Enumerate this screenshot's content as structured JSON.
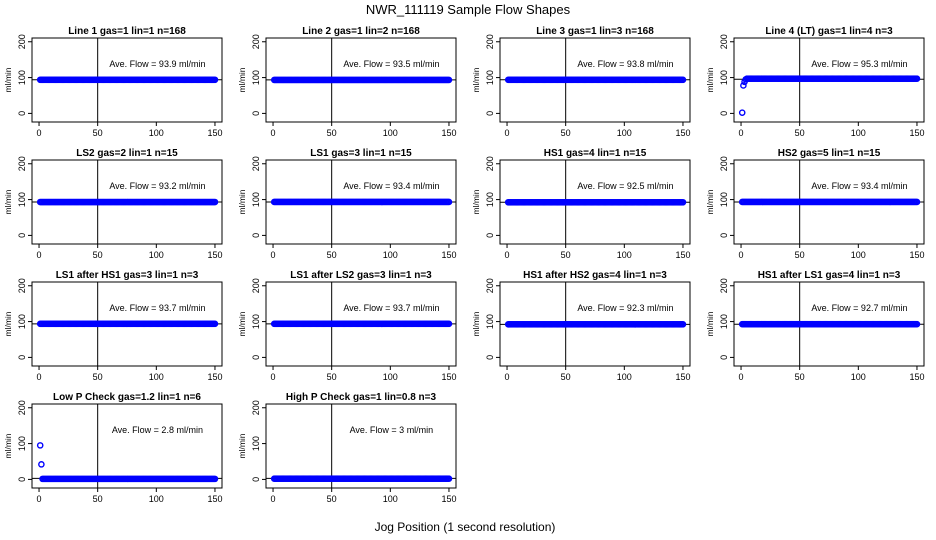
{
  "page": {
    "title": "NWR_111119  Sample Flow Shapes",
    "xlabel": "Jog Position (1 second resolution)"
  },
  "style": {
    "point_color": "#0000ff",
    "axis_color": "#000000"
  },
  "chart_data": [
    {
      "type": "scatter",
      "title": "Line 1 gas=1 lin=1 n=168",
      "ylabel": "ml/min",
      "annotation": "Ave. Flow = 93.9  ml/min",
      "xlim": [
        0,
        150
      ],
      "ylim": [
        0,
        200
      ],
      "xticks": [
        0,
        50,
        100,
        150
      ],
      "yticks": [
        0,
        100,
        200
      ],
      "vline": 50,
      "hline": 93.9,
      "x_range": [
        1,
        150
      ],
      "base_flow": 93.9,
      "outliers": []
    },
    {
      "type": "scatter",
      "title": "Line 2 gas=1 lin=2 n=168",
      "ylabel": "ml/min",
      "annotation": "Ave. Flow = 93.5  ml/min",
      "xlim": [
        0,
        150
      ],
      "ylim": [
        0,
        200
      ],
      "xticks": [
        0,
        50,
        100,
        150
      ],
      "yticks": [
        0,
        100,
        200
      ],
      "vline": 50,
      "hline": 93.5,
      "x_range": [
        1,
        150
      ],
      "base_flow": 93.5,
      "outliers": []
    },
    {
      "type": "scatter",
      "title": "Line 3 gas=1 lin=3 n=168",
      "ylabel": "ml/min",
      "annotation": "Ave. Flow = 93.8  ml/min",
      "xlim": [
        0,
        150
      ],
      "ylim": [
        0,
        200
      ],
      "xticks": [
        0,
        50,
        100,
        150
      ],
      "yticks": [
        0,
        100,
        200
      ],
      "vline": 50,
      "hline": 93.8,
      "x_range": [
        1,
        150
      ],
      "base_flow": 93.8,
      "outliers": []
    },
    {
      "type": "scatter",
      "title": "Line 4 (LT) gas=1 lin=4 n=3",
      "ylabel": "ml/min",
      "annotation": "Ave. Flow = 95.3  ml/min",
      "xlim": [
        0,
        150
      ],
      "ylim": [
        0,
        200
      ],
      "xticks": [
        0,
        50,
        100,
        150
      ],
      "yticks": [
        0,
        100,
        200
      ],
      "vline": 50,
      "hline": 95.3,
      "x_range": [
        5,
        150
      ],
      "base_flow": 97,
      "outliers": [
        [
          1,
          2
        ],
        [
          2,
          78
        ],
        [
          3,
          88
        ],
        [
          4,
          95
        ]
      ]
    },
    {
      "type": "scatter",
      "title": "LS2 gas=2 lin=1 n=15",
      "ylabel": "ml/min",
      "annotation": "Ave. Flow = 93.2  ml/min",
      "xlim": [
        0,
        150
      ],
      "ylim": [
        0,
        200
      ],
      "xticks": [
        0,
        50,
        100,
        150
      ],
      "yticks": [
        0,
        100,
        200
      ],
      "vline": 50,
      "hline": 93.2,
      "x_range": [
        1,
        150
      ],
      "base_flow": 93.2,
      "outliers": []
    },
    {
      "type": "scatter",
      "title": "LS1 gas=3 lin=1 n=15",
      "ylabel": "ml/min",
      "annotation": "Ave. Flow = 93.4  ml/min",
      "xlim": [
        0,
        150
      ],
      "ylim": [
        0,
        200
      ],
      "xticks": [
        0,
        50,
        100,
        150
      ],
      "yticks": [
        0,
        100,
        200
      ],
      "vline": 50,
      "hline": 93.4,
      "x_range": [
        1,
        150
      ],
      "base_flow": 93.4,
      "outliers": []
    },
    {
      "type": "scatter",
      "title": "HS1 gas=4 lin=1 n=15",
      "ylabel": "ml/min",
      "annotation": "Ave. Flow = 92.5  ml/min",
      "xlim": [
        0,
        150
      ],
      "ylim": [
        0,
        200
      ],
      "xticks": [
        0,
        50,
        100,
        150
      ],
      "yticks": [
        0,
        100,
        200
      ],
      "vline": 50,
      "hline": 92.5,
      "x_range": [
        1,
        150
      ],
      "base_flow": 92.5,
      "outliers": []
    },
    {
      "type": "scatter",
      "title": "HS2 gas=5 lin=1 n=15",
      "ylabel": "ml/min",
      "annotation": "Ave. Flow = 93.4  ml/min",
      "xlim": [
        0,
        150
      ],
      "ylim": [
        0,
        200
      ],
      "xticks": [
        0,
        50,
        100,
        150
      ],
      "yticks": [
        0,
        100,
        200
      ],
      "vline": 50,
      "hline": 93.4,
      "x_range": [
        1,
        150
      ],
      "base_flow": 93.4,
      "outliers": []
    },
    {
      "type": "scatter",
      "title": "LS1 after HS1 gas=3 lin=1 n=3",
      "ylabel": "ml/min",
      "annotation": "Ave. Flow = 93.7  ml/min",
      "xlim": [
        0,
        150
      ],
      "ylim": [
        0,
        200
      ],
      "xticks": [
        0,
        50,
        100,
        150
      ],
      "yticks": [
        0,
        100,
        200
      ],
      "vline": 50,
      "hline": 93.7,
      "x_range": [
        1,
        150
      ],
      "base_flow": 93.7,
      "outliers": []
    },
    {
      "type": "scatter",
      "title": "LS1 after LS2 gas=3 lin=1 n=3",
      "ylabel": "ml/min",
      "annotation": "Ave. Flow = 93.7  ml/min",
      "xlim": [
        0,
        150
      ],
      "ylim": [
        0,
        200
      ],
      "xticks": [
        0,
        50,
        100,
        150
      ],
      "yticks": [
        0,
        100,
        200
      ],
      "vline": 50,
      "hline": 93.7,
      "x_range": [
        1,
        150
      ],
      "base_flow": 93.7,
      "outliers": []
    },
    {
      "type": "scatter",
      "title": "HS1 after HS2 gas=4 lin=1 n=3",
      "ylabel": "ml/min",
      "annotation": "Ave. Flow = 92.3  ml/min",
      "xlim": [
        0,
        150
      ],
      "ylim": [
        0,
        200
      ],
      "xticks": [
        0,
        50,
        100,
        150
      ],
      "yticks": [
        0,
        100,
        200
      ],
      "vline": 50,
      "hline": 92.3,
      "x_range": [
        1,
        150
      ],
      "base_flow": 92.3,
      "outliers": []
    },
    {
      "type": "scatter",
      "title": "HS1 after LS1 gas=4 lin=1 n=3",
      "ylabel": "ml/min",
      "annotation": "Ave. Flow = 92.7  ml/min",
      "xlim": [
        0,
        150
      ],
      "ylim": [
        0,
        200
      ],
      "xticks": [
        0,
        50,
        100,
        150
      ],
      "yticks": [
        0,
        100,
        200
      ],
      "vline": 50,
      "hline": 92.7,
      "x_range": [
        1,
        150
      ],
      "base_flow": 92.7,
      "outliers": []
    },
    {
      "type": "scatter",
      "title": "Low P Check gas=1.2 lin=1 n=6",
      "ylabel": "ml/min",
      "annotation": "Ave. Flow = 2.8  ml/min",
      "xlim": [
        0,
        150
      ],
      "ylim": [
        0,
        200
      ],
      "xticks": [
        0,
        50,
        100,
        150
      ],
      "yticks": [
        0,
        100,
        200
      ],
      "vline": 50,
      "hline": 2.8,
      "x_range": [
        3,
        150
      ],
      "base_flow": 1.5,
      "outliers": [
        [
          1,
          95
        ],
        [
          2,
          42
        ]
      ]
    },
    {
      "type": "scatter",
      "title": "High P Check gas=1 lin=0.8 n=3",
      "ylabel": "ml/min",
      "annotation": "Ave. Flow = 3  ml/min",
      "xlim": [
        0,
        150
      ],
      "ylim": [
        0,
        200
      ],
      "xticks": [
        0,
        50,
        100,
        150
      ],
      "yticks": [
        0,
        100,
        200
      ],
      "vline": 50,
      "hline": 3,
      "x_range": [
        1,
        150
      ],
      "base_flow": 2,
      "outliers": []
    }
  ]
}
